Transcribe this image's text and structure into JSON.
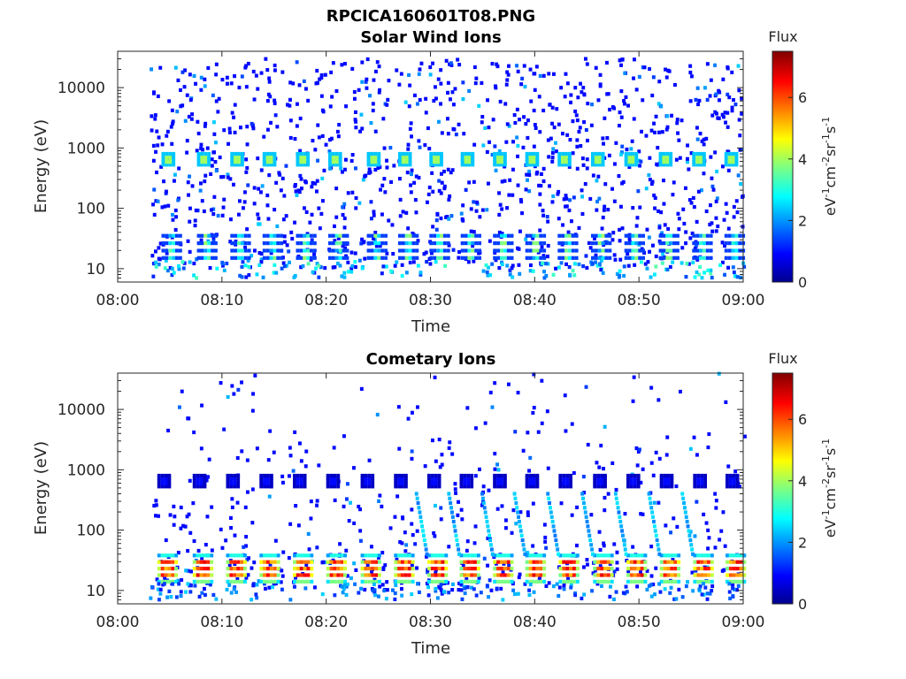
{
  "figure_title": "RPCICA160601T08.PNG",
  "chart_data": [
    {
      "type": "heatmap",
      "title": "Solar Wind Ions",
      "xlabel": "Time",
      "ylabel": "Energy (eV)",
      "x_range": [
        "08:00",
        "09:00"
      ],
      "xticks": [
        "08:00",
        "08:10",
        "08:20",
        "08:30",
        "08:40",
        "08:50",
        "09:00"
      ],
      "y_scale": "log",
      "ylim": [
        6,
        40000
      ],
      "yticks": [
        10,
        100,
        1000,
        10000
      ],
      "ytick_labels": [
        "10",
        "100",
        "1000",
        "10000"
      ],
      "colorbar": {
        "title": "Flux",
        "label": "eV-1cm-2sr-1s-1",
        "range": [
          0,
          7.5
        ],
        "ticks": [
          0,
          2,
          4,
          6
        ],
        "tick_labels": [
          "0",
          "2",
          "4",
          "6"
        ],
        "colormap": "jet"
      },
      "sweep_start_minutes": [
        4.2,
        7.6,
        10.8,
        13.9,
        17.1,
        20.2,
        23.9,
        26.9,
        29.9,
        32.9,
        36.0,
        39.1,
        42.2,
        45.4,
        48.6,
        51.9,
        55.1,
        58.2
      ],
      "features": [
        {
          "name": "solar wind peak",
          "energy_eV": 650,
          "flux": 4.0,
          "time": "each sweep"
        },
        {
          "name": "low energy band",
          "energy_eV_range": [
            15,
            35
          ],
          "flux": 2.5,
          "time": "each sweep"
        },
        {
          "name": "background counts",
          "energy_eV_range": [
            10,
            30000
          ],
          "flux": 1.0,
          "time": "08:03-09:00"
        }
      ]
    },
    {
      "type": "heatmap",
      "title": "Cometary Ions",
      "xlabel": "Time",
      "ylabel": "Energy (eV)",
      "x_range": [
        "08:00",
        "09:00"
      ],
      "xticks": [
        "08:00",
        "08:10",
        "08:20",
        "08:30",
        "08:40",
        "08:50",
        "09:00"
      ],
      "y_scale": "log",
      "ylim": [
        6,
        40000
      ],
      "yticks": [
        10,
        100,
        1000,
        10000
      ],
      "ytick_labels": [
        "10",
        "100",
        "1000",
        "10000"
      ],
      "colorbar": {
        "title": "Flux",
        "label": "eV-1cm-2sr-1s-1",
        "range": [
          0,
          7.5
        ],
        "ticks": [
          0,
          2,
          4,
          6
        ],
        "tick_labels": [
          "0",
          "2",
          "4",
          "6"
        ],
        "colormap": "jet"
      },
      "sweep_start_minutes": [
        3.8,
        7.2,
        10.4,
        13.6,
        16.8,
        20.0,
        23.3,
        26.5,
        29.7,
        32.8,
        36.0,
        39.1,
        42.3,
        45.6,
        48.8,
        52.0,
        55.2,
        58.3
      ],
      "features": [
        {
          "name": "cometary ion band",
          "energy_eV_range": [
            14,
            38
          ],
          "flux": 6.0,
          "time": "each sweep"
        },
        {
          "name": "solar wind peak",
          "energy_eV": 650,
          "flux": 1.0,
          "time": "each sweep"
        },
        {
          "name": "dispersed ions",
          "energy_eV_range": [
            40,
            400
          ],
          "flux": 2.5,
          "time": "08:28-08:58"
        },
        {
          "name": "background counts",
          "energy_eV_range": [
            10,
            30000
          ],
          "flux": 1.0,
          "time": "08:03-09:00"
        }
      ]
    }
  ]
}
